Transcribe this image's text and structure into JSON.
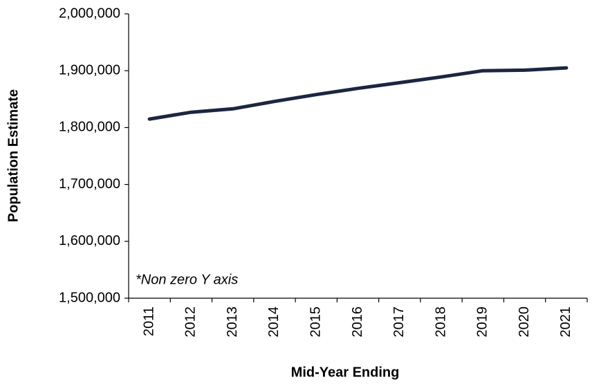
{
  "chart_data": {
    "type": "line",
    "y_label": "Population Estimate",
    "x_label": "Mid-Year Ending",
    "annotation": "*Non zero Y axis",
    "categories": [
      "2011",
      "2012",
      "2013",
      "2014",
      "2015",
      "2016",
      "2017",
      "2018",
      "2019",
      "2020",
      "2021"
    ],
    "values": [
      1815000,
      1827000,
      1833000,
      1846000,
      1858000,
      1869000,
      1879000,
      1889000,
      1900000,
      1901000,
      1905000
    ],
    "color": "#1c2541",
    "ylim": [
      1500000,
      2000000
    ],
    "yticks": [
      {
        "value": 1500000,
        "label": "1,500,000"
      },
      {
        "value": 1600000,
        "label": "1,600,000"
      },
      {
        "value": 1700000,
        "label": "1,700,000"
      },
      {
        "value": 1800000,
        "label": "1,800,000"
      },
      {
        "value": 1900000,
        "label": "1,900,000"
      },
      {
        "value": 2000000,
        "label": "2,000,000"
      }
    ],
    "grid": false
  }
}
